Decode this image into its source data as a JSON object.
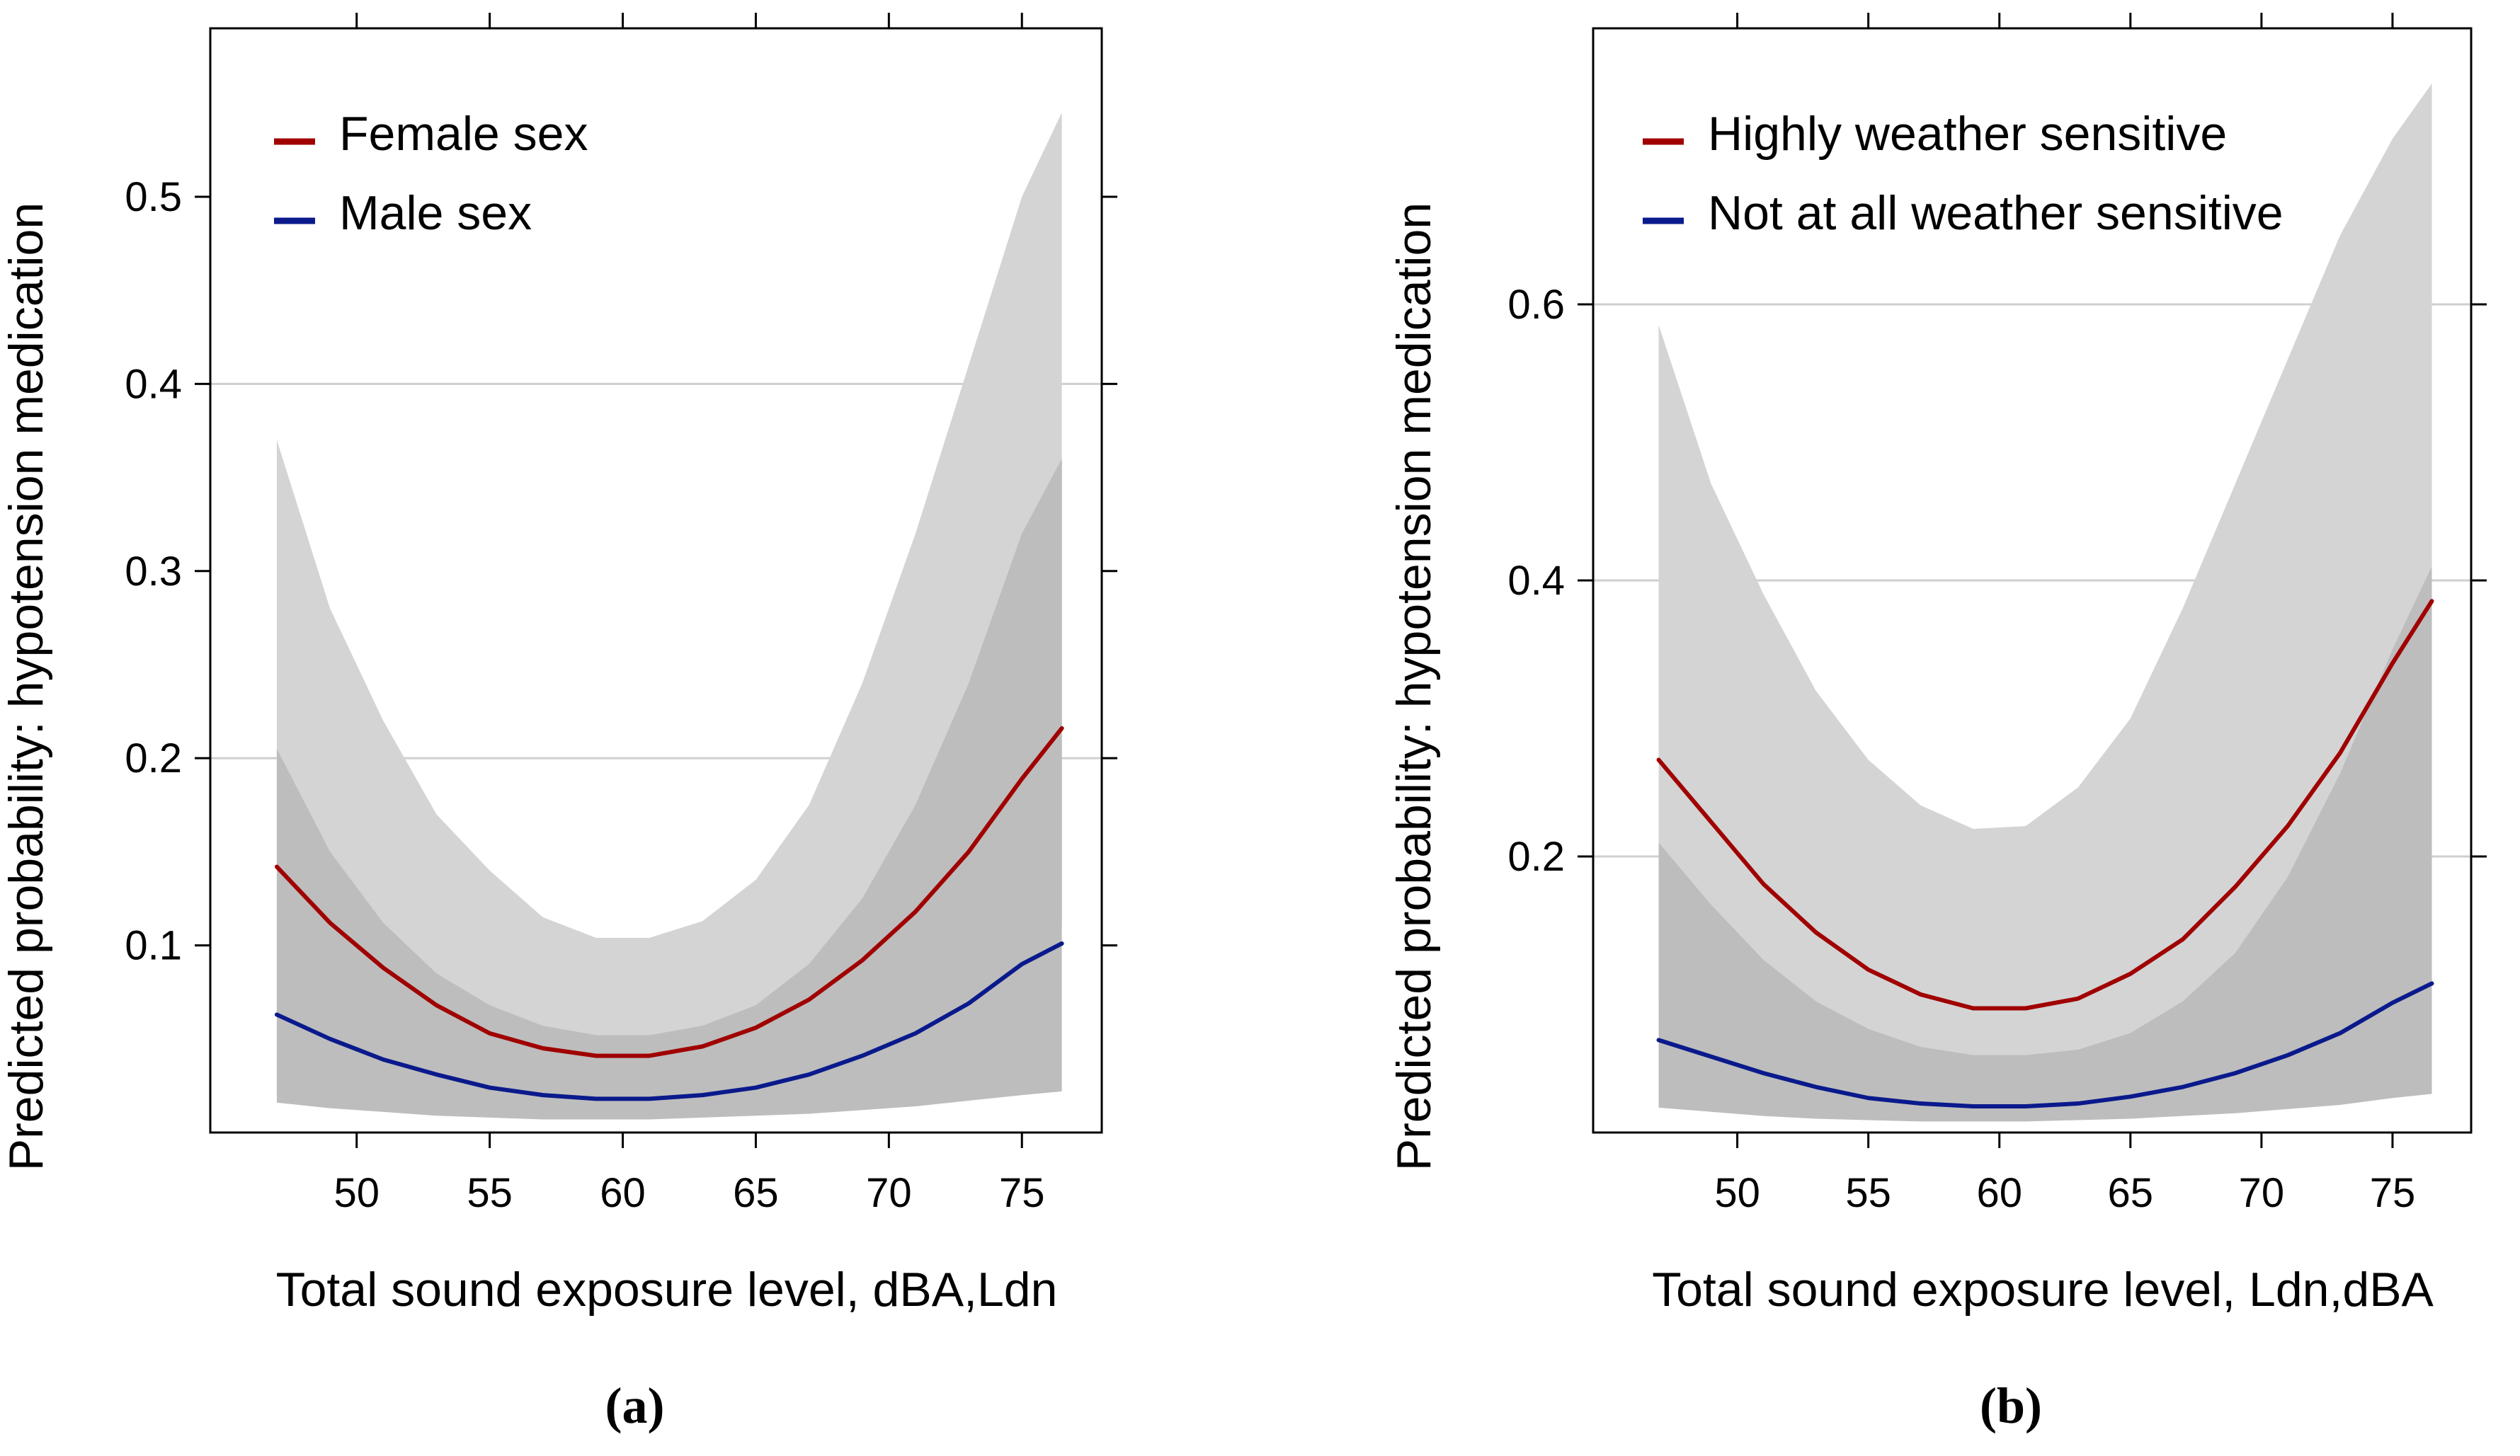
{
  "chart_data": [
    {
      "type": "line",
      "panel_label": "a",
      "xlabel": "Total sound exposure level, dBA,Ldn",
      "ylabel": "Predicted probability: hypotension medication",
      "xlim": [
        44.5,
        78
      ],
      "ylim": [
        0,
        0.59
      ],
      "x_ticks": [
        50,
        55,
        60,
        65,
        70,
        75
      ],
      "y_ticks": [
        0.1,
        0.2,
        0.3,
        0.4,
        0.5
      ],
      "y_tick_labels": [
        "0.1",
        "0.2",
        "0.3",
        "0.4",
        "0.5"
      ],
      "gridlines_y": [
        0.2,
        0.4
      ],
      "legend_position": "top-left",
      "x": [
        47,
        49,
        51,
        53,
        55,
        57,
        59,
        61,
        63,
        65,
        67,
        69,
        71,
        73,
        75,
        76.5
      ],
      "series": [
        {
          "name": "Female sex",
          "color": "#a00000",
          "values": [
            0.142,
            0.112,
            0.088,
            0.068,
            0.053,
            0.045,
            0.041,
            0.041,
            0.046,
            0.056,
            0.071,
            0.092,
            0.118,
            0.15,
            0.189,
            0.216
          ],
          "ci_lower": [
            0.02,
            0.03,
            0.035,
            0.04,
            0.043,
            0.046,
            0.049,
            0.05,
            0.05,
            0.053,
            0.06,
            0.068,
            0.078,
            0.09,
            0.102,
            0.11
          ],
          "ci_upper": [
            0.37,
            0.28,
            0.22,
            0.17,
            0.14,
            0.115,
            0.104,
            0.104,
            0.113,
            0.135,
            0.175,
            0.24,
            0.32,
            0.41,
            0.5,
            0.545
          ]
        },
        {
          "name": "Male sex",
          "color": "#0a1a8c",
          "values": [
            0.063,
            0.05,
            0.039,
            0.031,
            0.024,
            0.02,
            0.018,
            0.018,
            0.02,
            0.024,
            0.031,
            0.041,
            0.053,
            0.069,
            0.09,
            0.101
          ],
          "ci_lower": [
            0.016,
            0.013,
            0.011,
            0.009,
            0.008,
            0.007,
            0.007,
            0.007,
            0.008,
            0.009,
            0.01,
            0.012,
            0.014,
            0.017,
            0.02,
            0.022
          ],
          "ci_upper": [
            0.205,
            0.15,
            0.112,
            0.085,
            0.068,
            0.057,
            0.052,
            0.052,
            0.057,
            0.068,
            0.09,
            0.125,
            0.175,
            0.24,
            0.32,
            0.36
          ]
        }
      ]
    },
    {
      "type": "line",
      "panel_label": "b",
      "xlabel": "Total sound exposure level, Ldn,dBA",
      "ylabel": "Predicted probability: hypotension medication",
      "xlim": [
        44.5,
        78
      ],
      "ylim": [
        0,
        0.8
      ],
      "x_ticks": [
        50,
        55,
        60,
        65,
        70,
        75
      ],
      "y_ticks": [
        0.2,
        0.4,
        0.6
      ],
      "y_tick_labels": [
        "0.2",
        "0.4",
        "0.6"
      ],
      "gridlines_y": [
        0.2,
        0.4,
        0.6
      ],
      "legend_position": "top-left",
      "x": [
        47,
        49,
        51,
        53,
        55,
        57,
        59,
        61,
        63,
        65,
        67,
        69,
        71,
        73,
        75,
        76.5
      ],
      "series": [
        {
          "name": "Highly weather sensitive",
          "color": "#a00000",
          "values": [
            0.27,
            0.225,
            0.18,
            0.145,
            0.118,
            0.1,
            0.09,
            0.09,
            0.097,
            0.115,
            0.14,
            0.178,
            0.222,
            0.275,
            0.34,
            0.385
          ],
          "ci_lower": [
            0.1,
            0.085,
            0.072,
            0.06,
            0.05,
            0.042,
            0.038,
            0.038,
            0.04,
            0.045,
            0.052,
            0.06,
            0.07,
            0.08,
            0.095,
            0.108
          ],
          "ci_upper": [
            0.585,
            0.47,
            0.39,
            0.32,
            0.27,
            0.237,
            0.22,
            0.222,
            0.25,
            0.3,
            0.38,
            0.47,
            0.56,
            0.65,
            0.72,
            0.76
          ]
        },
        {
          "name": "Not at all weather sensitive",
          "color": "#0a1a8c",
          "values": [
            0.067,
            0.055,
            0.043,
            0.033,
            0.025,
            0.021,
            0.019,
            0.019,
            0.021,
            0.026,
            0.033,
            0.043,
            0.056,
            0.072,
            0.094,
            0.108
          ],
          "ci_lower": [
            0.018,
            0.015,
            0.012,
            0.01,
            0.009,
            0.008,
            0.008,
            0.008,
            0.009,
            0.01,
            0.012,
            0.014,
            0.017,
            0.02,
            0.025,
            0.028
          ],
          "ci_upper": [
            0.21,
            0.165,
            0.125,
            0.095,
            0.075,
            0.062,
            0.056,
            0.056,
            0.06,
            0.072,
            0.095,
            0.13,
            0.185,
            0.26,
            0.35,
            0.41
          ]
        }
      ]
    }
  ]
}
